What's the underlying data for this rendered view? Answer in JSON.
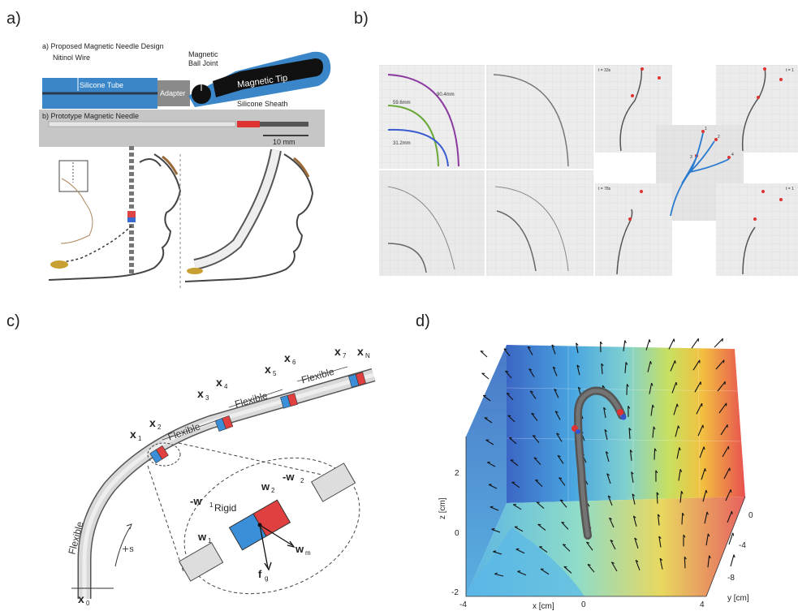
{
  "panels": {
    "a": "a)",
    "b": "b)",
    "c": "c)",
    "d": "d)"
  },
  "panel_a": {
    "design_title": "a) Proposed Magnetic Needle Design",
    "nitinol": "Nitinol  Wire",
    "silicone_tube": "Silicone Tube",
    "adapter": "Adapter",
    "magnetic": "Magnetic",
    "ball_joint": "Ball Joint",
    "magnetic_tip": "Magnetic Tip",
    "silicone_sheath": "Silicone Sheath",
    "prototype_title": "b) Prototype Magnetic Needle",
    "scale": "10 mm"
  },
  "panel_b": {
    "r1": "90.4mm",
    "r2": "59.6mm",
    "r3": "31.2mm",
    "t1": "t = 33s",
    "t2": "t = 78s",
    "t1b": "t = 1",
    "t2b": "t = 1",
    "m1": "1",
    "m2": "2",
    "m3": "3",
    "m4": "4"
  },
  "panel_c": {
    "x0": "x",
    "x0s": "0",
    "x1": "x",
    "x1s": "1",
    "x2": "x",
    "x2s": "2",
    "x3": "x",
    "x3s": "3",
    "x4": "x",
    "x4s": "4",
    "x5": "x",
    "x5s": "5",
    "x6": "x",
    "x6s": "6",
    "x7": "x",
    "x7s": "7",
    "xN": "x",
    "xNs": "N",
    "flex1": "Flexible",
    "flex2": "Flexible",
    "flex3": "Flexible",
    "flex4": "Flexible",
    "s": "+s",
    "rigid": "Rigid",
    "w1": "w",
    "w1s": "1",
    "mw1": "-w",
    "mw1s": "1",
    "w2": "w",
    "w2s": "2",
    "mw2": "-w",
    "mw2s": "2",
    "wm": "w",
    "wms": "m",
    "fg": "f",
    "fgs": "g"
  },
  "panel_d": {
    "zlabel": "z [cm]",
    "xlabel": "x [cm]",
    "ylabel": "y [cm]",
    "zticks": [
      "2",
      "0",
      "-2"
    ],
    "xticks": [
      "-4",
      "0",
      "4"
    ],
    "yticks": [
      "0",
      "-4",
      "-8"
    ]
  }
}
